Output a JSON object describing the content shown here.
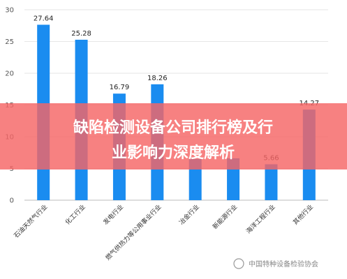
{
  "chart_data": {
    "type": "bar",
    "categories": [
      "石油天然气行业",
      "化工行业",
      "发电行业",
      "燃气供热力等公用事业行业",
      "冶金行业",
      "新能源行业",
      "海洋工程行业",
      "其他行业"
    ],
    "values": [
      27.64,
      25.28,
      16.79,
      18.26,
      6.5,
      6.6,
      5.66,
      14.27
    ],
    "data_labels": [
      "27.64",
      "25.28",
      "16.79",
      "18.26",
      "",
      "",
      "5.66",
      "14.27"
    ],
    "yticks": [
      "0",
      "5",
      "10",
      "15",
      "20",
      "25",
      "30"
    ],
    "ylim": [
      0,
      30
    ],
    "grid": true,
    "bar_color": "#1a8cf0"
  },
  "banner": {
    "line1": "缺陷检测设备公司排行榜及行",
    "line2": "业影响力深度解析",
    "color": "#f56565"
  },
  "watermark": {
    "text": "中国特种设备检验协会"
  }
}
